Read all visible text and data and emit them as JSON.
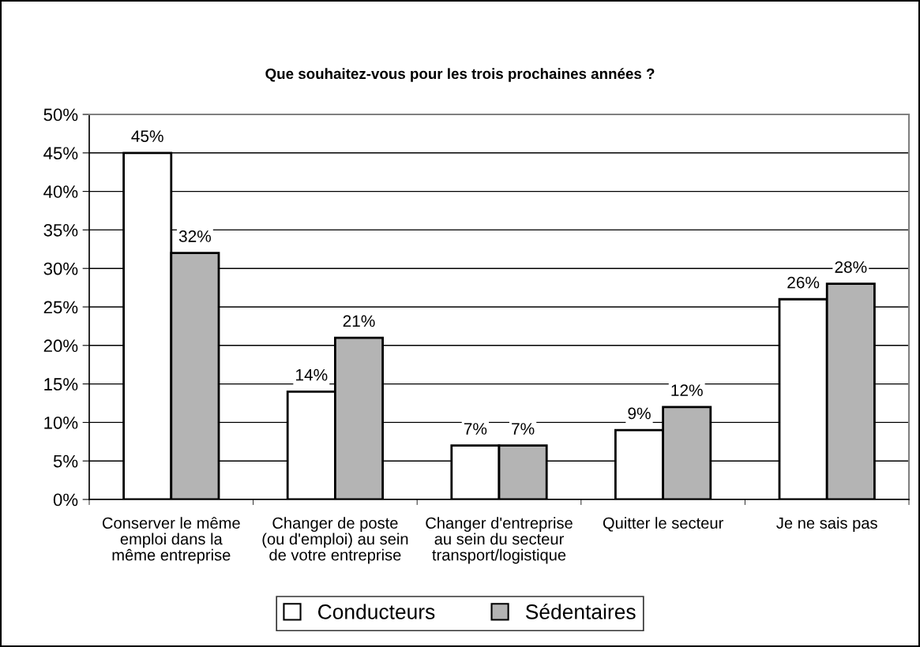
{
  "chart_data": {
    "type": "bar",
    "title": "Que souhaitez-vous pour les trois prochaines années ?",
    "categories": [
      "Conserver le même\nemploi dans la\nmême entreprise",
      "Changer de poste\n(ou d'emploi) au sein\nde votre entreprise",
      "Changer d'entreprise\nau sein du secteur\ntransport/logistique",
      "Quitter le secteur",
      "Je ne sais pas"
    ],
    "series": [
      {
        "name": "Conducteurs",
        "color": "#ffffff",
        "values": [
          45,
          14,
          7,
          9,
          26
        ],
        "value_labels": [
          "45%",
          "14%",
          "7%",
          "9%",
          "26%"
        ]
      },
      {
        "name": "Sédentaires",
        "color": "#b4b4b4",
        "values": [
          32,
          21,
          7,
          12,
          28
        ],
        "value_labels": [
          "32%",
          "21%",
          "7%",
          "12%",
          "28%"
        ]
      }
    ],
    "ylim": [
      0,
      50
    ],
    "yticks": [
      {
        "value": 0,
        "label": "0%"
      },
      {
        "value": 5,
        "label": "5%"
      },
      {
        "value": 10,
        "label": "10%"
      },
      {
        "value": 15,
        "label": "15%"
      },
      {
        "value": 20,
        "label": "20%"
      },
      {
        "value": 25,
        "label": "25%"
      },
      {
        "value": 30,
        "label": "30%"
      },
      {
        "value": 35,
        "label": "35%"
      },
      {
        "value": 40,
        "label": "40%"
      },
      {
        "value": 45,
        "label": "45%"
      },
      {
        "value": 50,
        "label": "50%"
      }
    ],
    "grid": "y",
    "legend": "bottom"
  }
}
